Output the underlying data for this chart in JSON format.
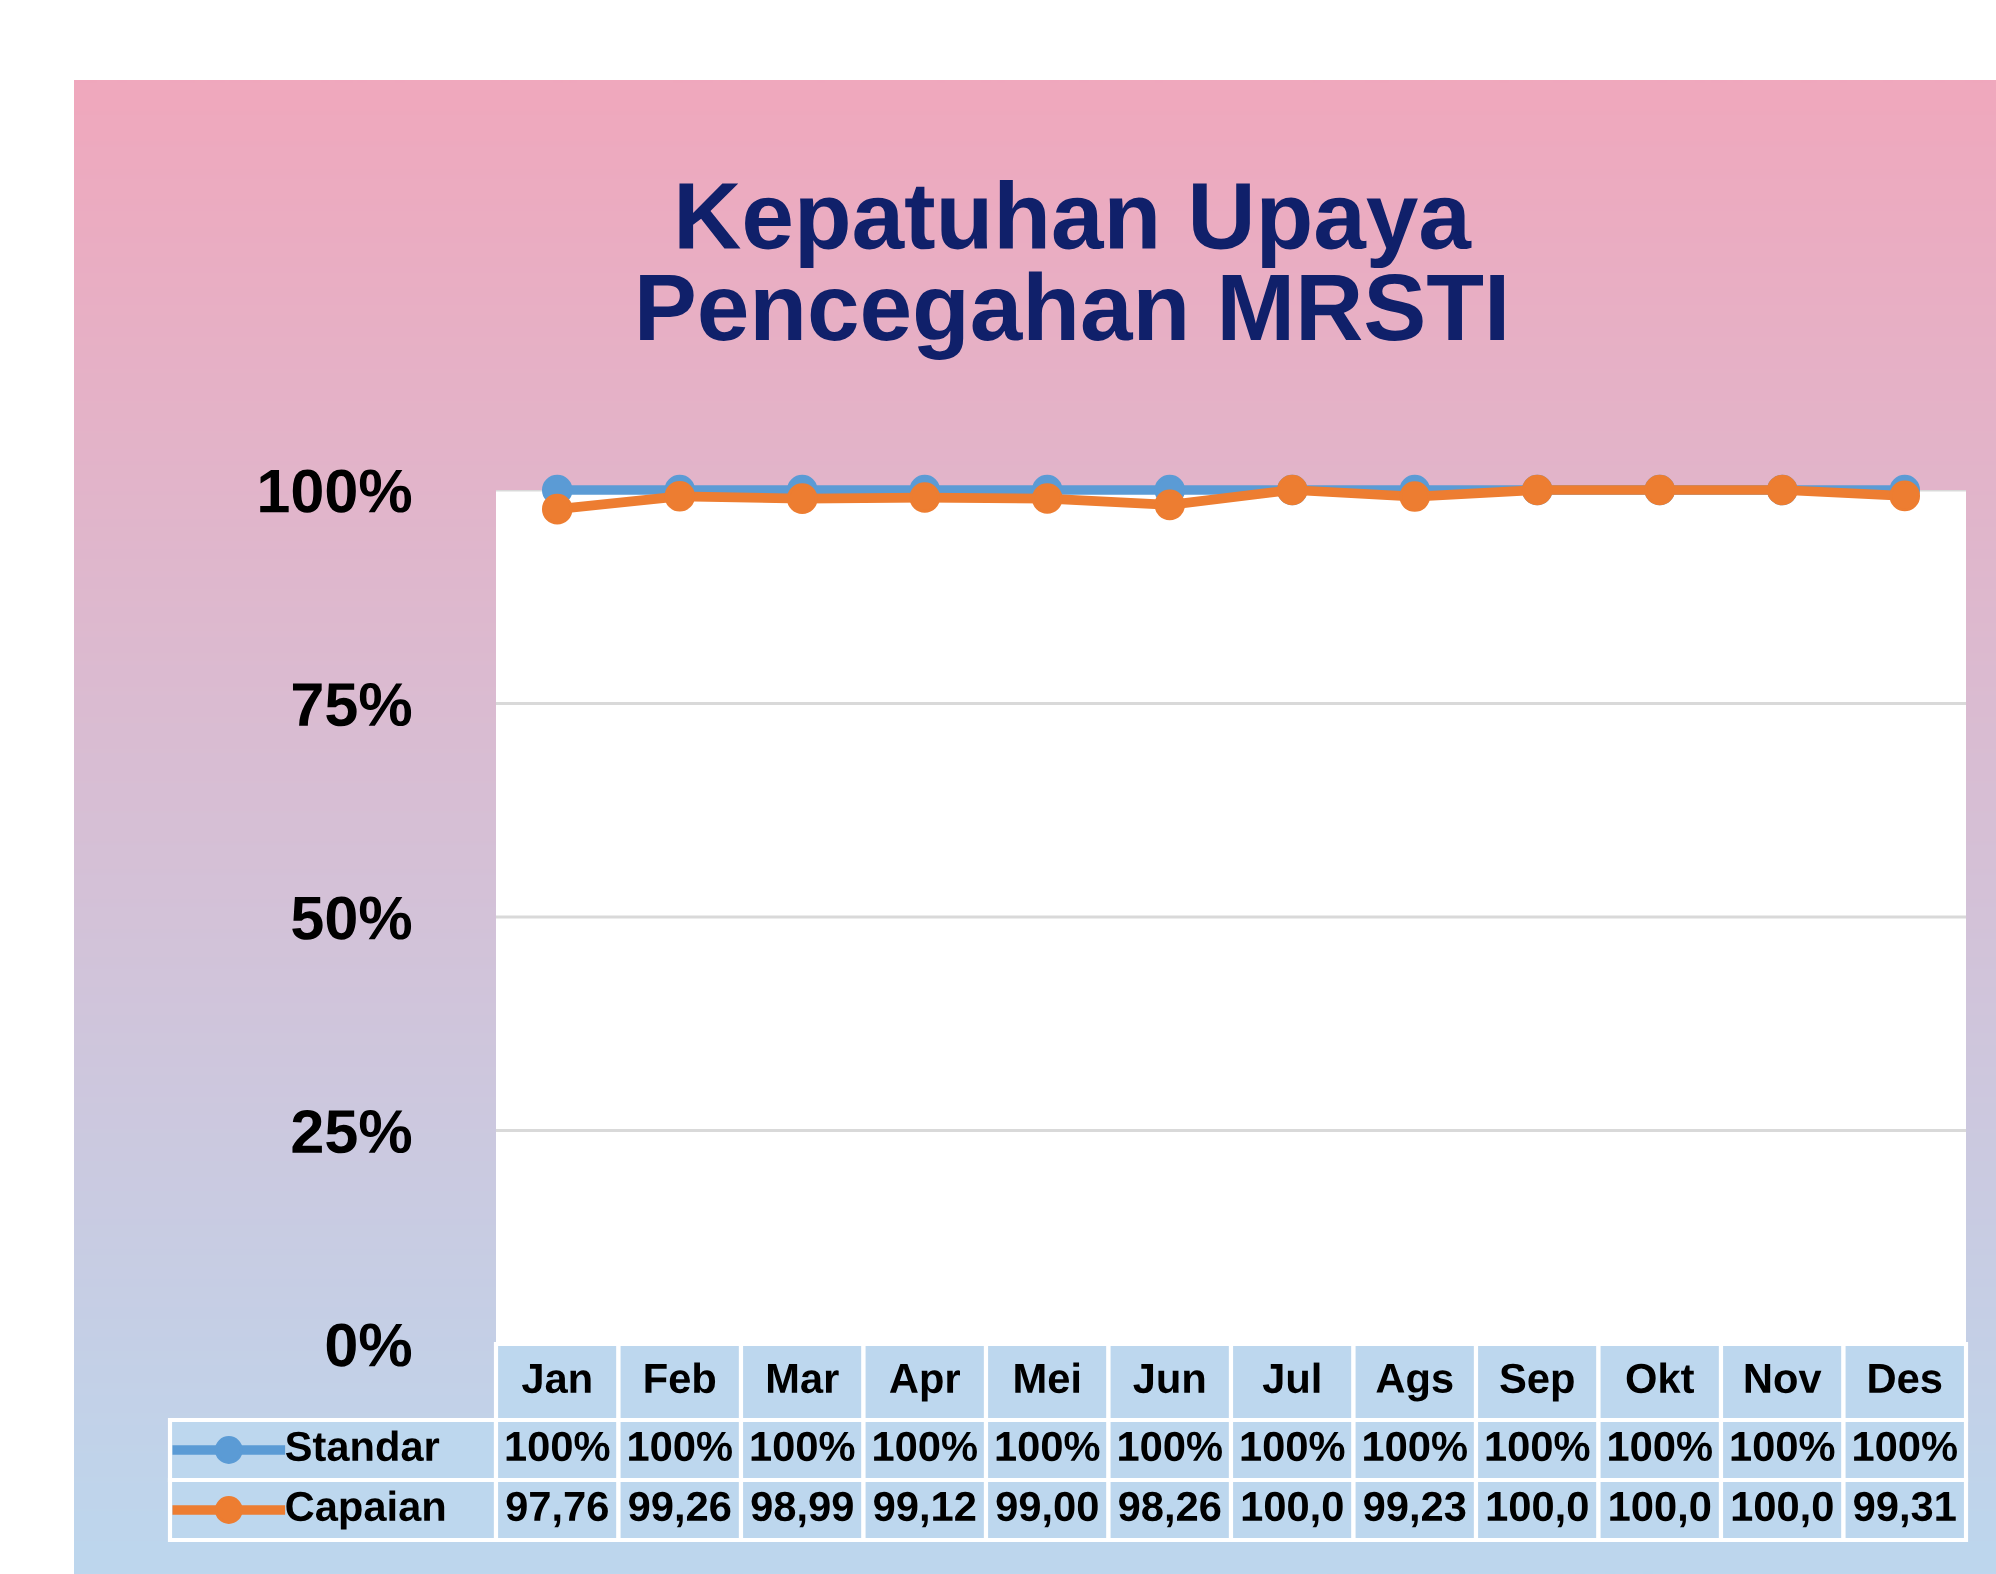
{
  "chart_data": {
    "type": "line",
    "title": "Kepatuhan Upaya\nPencegahan MRSTI",
    "categories": [
      "Jan",
      "Feb",
      "Mar",
      "Apr",
      "Mei",
      "Jun",
      "Jul",
      "Ags",
      "Sep",
      "Okt",
      "Nov",
      "Des"
    ],
    "series": [
      {
        "name": "Standar",
        "color": "#5b9bd5",
        "values": [
          100,
          100,
          100,
          100,
          100,
          100,
          100,
          100,
          100,
          100,
          100,
          100
        ],
        "value_labels": [
          "100%",
          "100%",
          "100%",
          "100%",
          "100%",
          "100%",
          "100%",
          "100%",
          "100%",
          "100%",
          "100%",
          "100%"
        ]
      },
      {
        "name": "Capaian",
        "color": "#ed7d31",
        "values": [
          97.76,
          99.26,
          98.99,
          99.12,
          99.0,
          98.26,
          100.0,
          99.23,
          100.0,
          100.0,
          100.0,
          99.31
        ],
        "value_labels": [
          "97,76",
          "99,26",
          "98,99",
          "99,12",
          "99,00",
          "98,26",
          "100,0",
          "99,23",
          "100,0",
          "100,0",
          "100,0",
          "99,31"
        ]
      }
    ],
    "ylim": [
      0,
      100
    ],
    "yticks": [
      {
        "value": 0,
        "label": "0%"
      },
      {
        "value": 25,
        "label": "25%"
      },
      {
        "value": 50,
        "label": "50%"
      },
      {
        "value": 75,
        "label": "75%"
      },
      {
        "value": 100,
        "label": "100%"
      }
    ],
    "grid": "y",
    "legend": "bottom",
    "marker": "circle",
    "line_style": "solid"
  }
}
